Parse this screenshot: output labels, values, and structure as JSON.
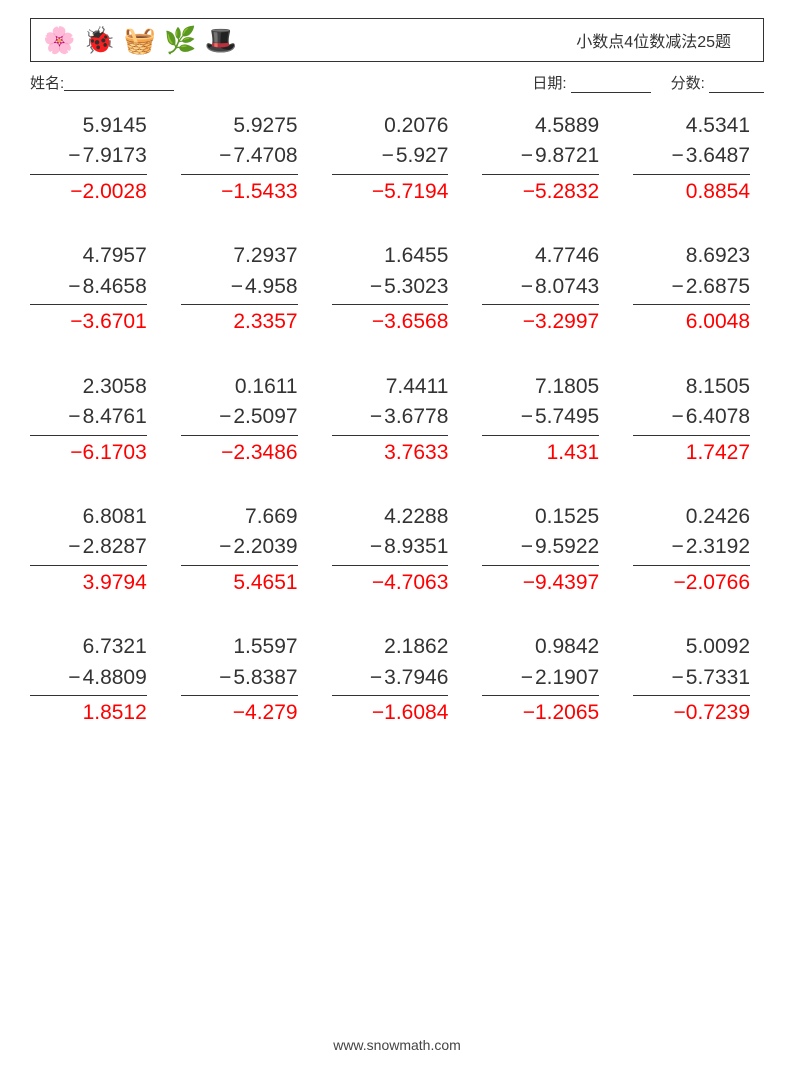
{
  "header": {
    "icons": [
      "flower-icon",
      "ladybug-icon",
      "basket-icon",
      "branch-icon",
      "hat-icon"
    ],
    "icon_glyphs": [
      "🌸",
      "🐞",
      "🧺",
      "🌿",
      "🎩"
    ],
    "title": "小数点4位数减法25题"
  },
  "meta": {
    "name_label": "姓名:",
    "date_label": "日期:",
    "score_label": "分数:"
  },
  "styling": {
    "text_color": "#333333",
    "answer_color": "#ff0000",
    "font_size_problem": 21,
    "font_size_title": 16,
    "font_size_meta": 15,
    "font_size_footer": 14,
    "border_color": "#333333",
    "background_color": "#ffffff",
    "cols": 5,
    "rows": 5
  },
  "problems": [
    {
      "a": "5.9145",
      "b": "7.9173",
      "ans": "−2.0028"
    },
    {
      "a": "5.9275",
      "b": "7.4708",
      "ans": "−1.5433"
    },
    {
      "a": "0.2076",
      "b": "5.927",
      "ans": "−5.7194"
    },
    {
      "a": "4.5889",
      "b": "9.8721",
      "ans": "−5.2832"
    },
    {
      "a": "4.5341",
      "b": "3.6487",
      "ans": "0.8854"
    },
    {
      "a": "4.7957",
      "b": "8.4658",
      "ans": "−3.6701"
    },
    {
      "a": "7.2937",
      "b": "4.958",
      "ans": "2.3357"
    },
    {
      "a": "1.6455",
      "b": "5.3023",
      "ans": "−3.6568"
    },
    {
      "a": "4.7746",
      "b": "8.0743",
      "ans": "−3.2997"
    },
    {
      "a": "8.6923",
      "b": "2.6875",
      "ans": "6.0048"
    },
    {
      "a": "2.3058",
      "b": "8.4761",
      "ans": "−6.1703"
    },
    {
      "a": "0.1611",
      "b": "2.5097",
      "ans": "−2.3486"
    },
    {
      "a": "7.4411",
      "b": "3.6778",
      "ans": "3.7633"
    },
    {
      "a": "7.1805",
      "b": "5.7495",
      "ans": "1.431"
    },
    {
      "a": "8.1505",
      "b": "6.4078",
      "ans": "1.7427"
    },
    {
      "a": "6.8081",
      "b": "2.8287",
      "ans": "3.9794"
    },
    {
      "a": "7.669",
      "b": "2.2039",
      "ans": "5.4651"
    },
    {
      "a": "4.2288",
      "b": "8.9351",
      "ans": "−4.7063"
    },
    {
      "a": "0.1525",
      "b": "9.5922",
      "ans": "−9.4397"
    },
    {
      "a": "0.2426",
      "b": "2.3192",
      "ans": "−2.0766"
    },
    {
      "a": "6.7321",
      "b": "4.8809",
      "ans": "1.8512"
    },
    {
      "a": "1.5597",
      "b": "5.8387",
      "ans": "−4.279"
    },
    {
      "a": "2.1862",
      "b": "3.7946",
      "ans": "−1.6084"
    },
    {
      "a": "0.9842",
      "b": "2.1907",
      "ans": "−1.2065"
    },
    {
      "a": "5.0092",
      "b": "5.7331",
      "ans": "−0.7239"
    }
  ],
  "footer": {
    "text": "www.snowmath.com"
  }
}
